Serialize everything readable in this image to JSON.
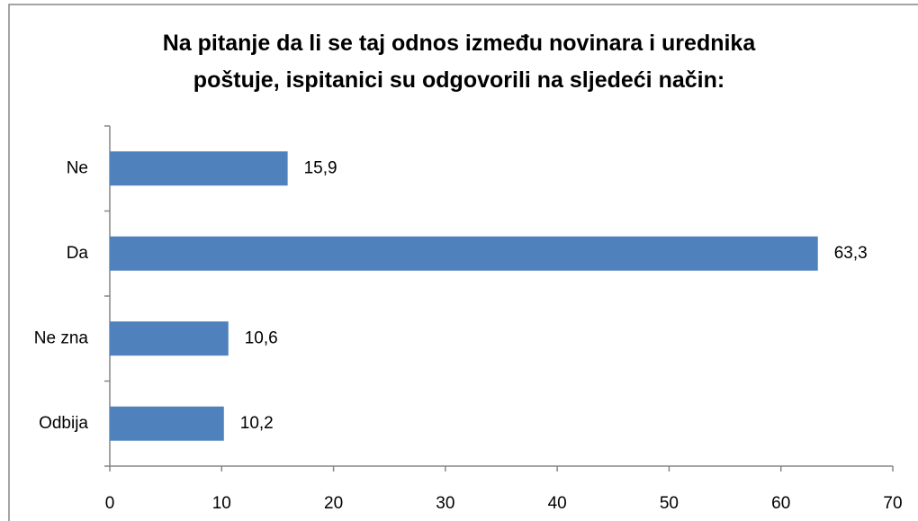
{
  "chart_data": {
    "type": "barh",
    "title": "Na pitanje da li se taj odnos između novinara i urednika poštuje, ispitanici su odgovorili na sljedeći način:",
    "categories": [
      "Ne",
      "Da",
      "Ne zna",
      "Odbija"
    ],
    "values": [
      15.9,
      63.3,
      10.6,
      10.2
    ],
    "value_labels": [
      "15,9",
      "63,3",
      "10,6",
      "10,2"
    ],
    "color": "#4f81bd",
    "xlim": [
      0,
      70
    ],
    "xticks": [
      0,
      10,
      20,
      30,
      40,
      50,
      60,
      70
    ],
    "grid": false
  }
}
